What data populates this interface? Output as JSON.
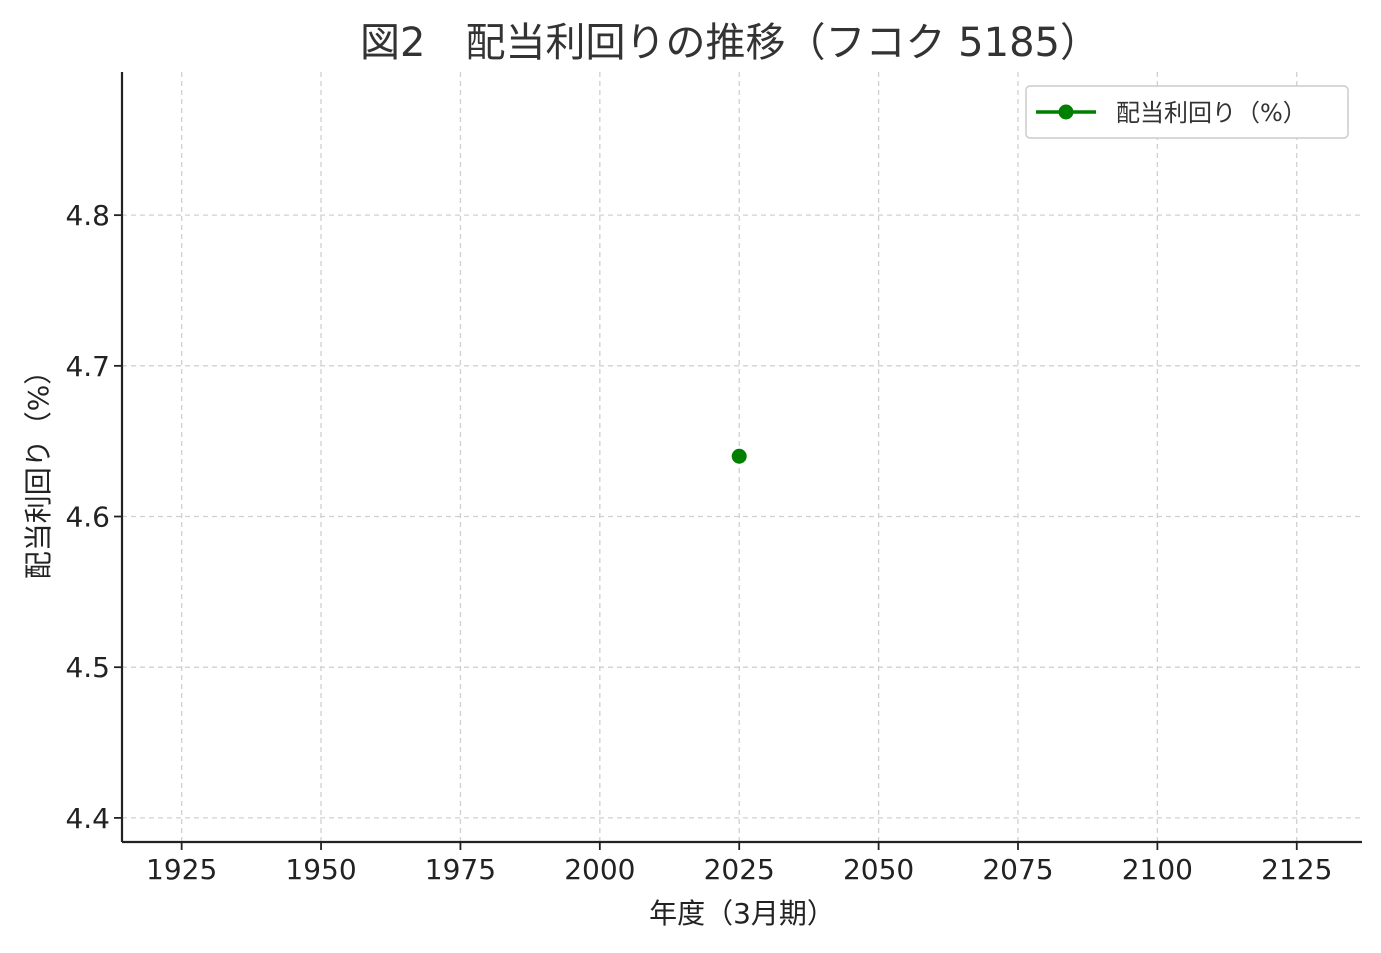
{
  "chart_data": {
    "type": "line",
    "title": "図2　配当利回りの推移（フコク 5185）",
    "xlabel": "年度（3月期）",
    "ylabel": "配当利回り（%）",
    "xlim": [
      1914.3,
      2136.7
    ],
    "ylim": [
      4.384,
      4.895
    ],
    "xticks": [
      1925,
      1950,
      1975,
      2000,
      2025,
      2050,
      2075,
      2100,
      2125
    ],
    "yticks": [
      4.4,
      4.5,
      4.6,
      4.7,
      4.8
    ],
    "xtick_labels": [
      "1925",
      "1950",
      "1975",
      "2000",
      "2025",
      "2050",
      "2075",
      "2100",
      "2125"
    ],
    "ytick_labels": [
      "4.4",
      "4.5",
      "4.6",
      "4.7",
      "4.8"
    ],
    "grid": true,
    "legend_position": "top-right",
    "series": [
      {
        "name": "配当利回り（%）",
        "color": "#008000",
        "marker": "circle",
        "x": [
          2025
        ],
        "y": [
          4.64
        ]
      }
    ]
  }
}
